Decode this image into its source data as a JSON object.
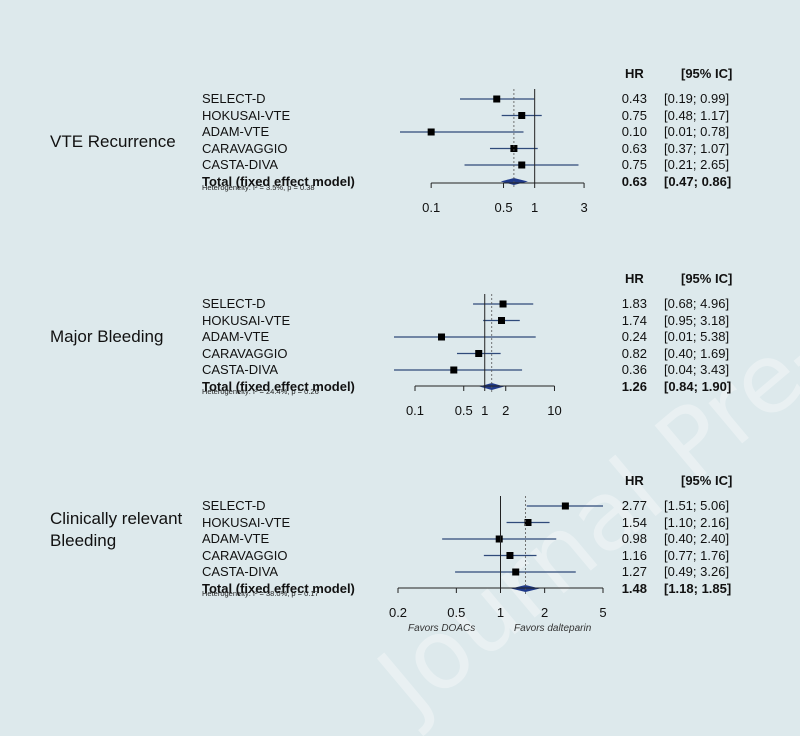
{
  "watermark": "Journal Pre-proof",
  "columns": {
    "hr": "HR",
    "ci": "[95% IC]"
  },
  "favors": {
    "left": "Favors DOACs",
    "right": "Favors dalteparin"
  },
  "chart_data": [
    {
      "type": "forest",
      "title": "VTE Recurrence",
      "scale": "log",
      "xlim": [
        0.05,
        4
      ],
      "ticks": [
        "0.1",
        "0.5",
        "1",
        "3"
      ],
      "tick_values": [
        0.1,
        0.5,
        1,
        3
      ],
      "heterogeneity": "Heterogeneity: I² = 3.5%, p = 0.38",
      "studies": [
        {
          "name": "SELECT-D",
          "hr": 0.43,
          "lo": 0.19,
          "hi": 0.99,
          "hr_text": "0.43",
          "ci_text": "[0.19; 0.99]"
        },
        {
          "name": "HOKUSAI-VTE",
          "hr": 0.75,
          "lo": 0.48,
          "hi": 1.17,
          "hr_text": "0.75",
          "ci_text": "[0.48; 1.17]"
        },
        {
          "name": "ADAM-VTE",
          "hr": 0.1,
          "lo": 0.01,
          "hi": 0.78,
          "hr_text": "0.10",
          "ci_text": "[0.01; 0.78]"
        },
        {
          "name": "CARAVAGGIO",
          "hr": 0.63,
          "lo": 0.37,
          "hi": 1.07,
          "hr_text": "0.63",
          "ci_text": "[0.37; 1.07]"
        },
        {
          "name": "CASTA-DIVA",
          "hr": 0.75,
          "lo": 0.21,
          "hi": 2.65,
          "hr_text": "0.75",
          "ci_text": "[0.21; 2.65]"
        }
      ],
      "total": {
        "name": "Total (fixed effect model)",
        "hr": 0.63,
        "lo": 0.47,
        "hi": 0.86,
        "hr_text": "0.63",
        "ci_text": "[0.47; 0.86]"
      }
    },
    {
      "type": "forest",
      "title": "Major Bleeding",
      "scale": "log",
      "xlim": [
        0.05,
        12
      ],
      "ticks": [
        "0.1",
        "0.5",
        "1",
        "2",
        "10"
      ],
      "tick_values": [
        0.1,
        0.5,
        1,
        2,
        10
      ],
      "heterogeneity": "Heterogeneity: I² = 24.4%, p = 0.26",
      "studies": [
        {
          "name": "SELECT-D",
          "hr": 1.83,
          "lo": 0.68,
          "hi": 4.96,
          "hr_text": "1.83",
          "ci_text": "[0.68; 4.96]"
        },
        {
          "name": "HOKUSAI-VTE",
          "hr": 1.74,
          "lo": 0.95,
          "hi": 3.18,
          "hr_text": "1.74",
          "ci_text": "[0.95; 3.18]"
        },
        {
          "name": "ADAM-VTE",
          "hr": 0.24,
          "lo": 0.01,
          "hi": 5.38,
          "hr_text": "0.24",
          "ci_text": "[0.01; 5.38]"
        },
        {
          "name": "CARAVAGGIO",
          "hr": 0.82,
          "lo": 0.4,
          "hi": 1.69,
          "hr_text": "0.82",
          "ci_text": "[0.40; 1.69]"
        },
        {
          "name": "CASTA-DIVA",
          "hr": 0.36,
          "lo": 0.04,
          "hi": 3.43,
          "hr_text": "0.36",
          "ci_text": "[0.04; 3.43]"
        }
      ],
      "total": {
        "name": "Total (fixed effect model)",
        "hr": 1.26,
        "lo": 0.84,
        "hi": 1.9,
        "hr_text": "1.26",
        "ci_text": "[0.84; 1.90]"
      }
    },
    {
      "type": "forest",
      "title": "Clinically relevant\nBleeding",
      "scale": "log",
      "xlim": [
        0.2,
        5
      ],
      "ticks": [
        "0.2",
        "0.5",
        "1",
        "2",
        "5"
      ],
      "tick_values": [
        0.2,
        0.5,
        1,
        2,
        5
      ],
      "heterogeneity": "Heterogeneity: I² = 38.0%, p = 0.17",
      "studies": [
        {
          "name": "SELECT-D",
          "hr": 2.77,
          "lo": 1.51,
          "hi": 5.06,
          "hr_text": "2.77",
          "ci_text": "[1.51; 5.06]"
        },
        {
          "name": "HOKUSAI-VTE",
          "hr": 1.54,
          "lo": 1.1,
          "hi": 2.16,
          "hr_text": "1.54",
          "ci_text": "[1.10; 2.16]"
        },
        {
          "name": "ADAM-VTE",
          "hr": 0.98,
          "lo": 0.4,
          "hi": 2.4,
          "hr_text": "0.98",
          "ci_text": "[0.40; 2.40]"
        },
        {
          "name": "CARAVAGGIO",
          "hr": 1.16,
          "lo": 0.77,
          "hi": 1.76,
          "hr_text": "1.16",
          "ci_text": "[0.77; 1.76]"
        },
        {
          "name": "CASTA-DIVA",
          "hr": 1.27,
          "lo": 0.49,
          "hi": 3.26,
          "hr_text": "1.27",
          "ci_text": "[0.49; 3.26]"
        }
      ],
      "total": {
        "name": "Total (fixed effect model)",
        "hr": 1.48,
        "lo": 1.18,
        "hi": 1.85,
        "hr_text": "1.48",
        "ci_text": "[1.18; 1.85]"
      }
    }
  ]
}
